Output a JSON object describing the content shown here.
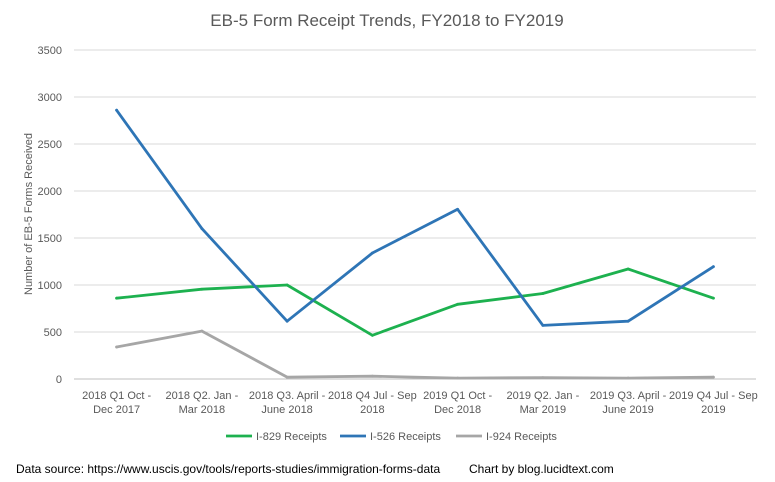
{
  "chart_data": {
    "type": "line",
    "title": "EB-5 Form Receipt Trends, FY2018 to FY2019",
    "xlabel": "",
    "ylabel": "Number  of EB-5 Forms Received",
    "ylim": [
      0,
      3500
    ],
    "yticks": [
      "0",
      "500",
      "1000",
      "1500",
      "2000",
      "2500",
      "3000",
      "3500"
    ],
    "grid": "horizontal",
    "legend_position": "bottom",
    "categories": [
      [
        "2018 Q1 Oct -",
        "Dec 2017"
      ],
      [
        "2018 Q2. Jan -",
        "Mar 2018"
      ],
      [
        "2018 Q3. April -",
        "June 2018"
      ],
      [
        "2018 Q4 Jul - Sep",
        "2018"
      ],
      [
        "2019  Q1  Oct -",
        "Dec 2018"
      ],
      [
        "2019 Q2. Jan -",
        "Mar 2019"
      ],
      [
        "2019 Q3. April -",
        "June 2019"
      ],
      [
        "2019 Q4 Jul - Sep",
        "2019"
      ]
    ],
    "series": [
      {
        "name": "I-829 Receipts",
        "color": "#1db14f",
        "values": [
          860,
          955,
          1000,
          465,
          795,
          910,
          1170,
          860
        ]
      },
      {
        "name": "I-526 Receipts",
        "color": "#2e75b6",
        "values": [
          2860,
          1600,
          615,
          1340,
          1805,
          570,
          615,
          1195
        ]
      },
      {
        "name": "I-924 Receipts",
        "color": "#a6a6a6",
        "values": [
          340,
          510,
          20,
          30,
          10,
          15,
          10,
          20
        ]
      }
    ]
  },
  "footer": {
    "source": "Data source: https://www.uscis.gov/tools/reports-studies/immigration-forms-data",
    "credit": "Chart by blog.lucidtext.com"
  }
}
